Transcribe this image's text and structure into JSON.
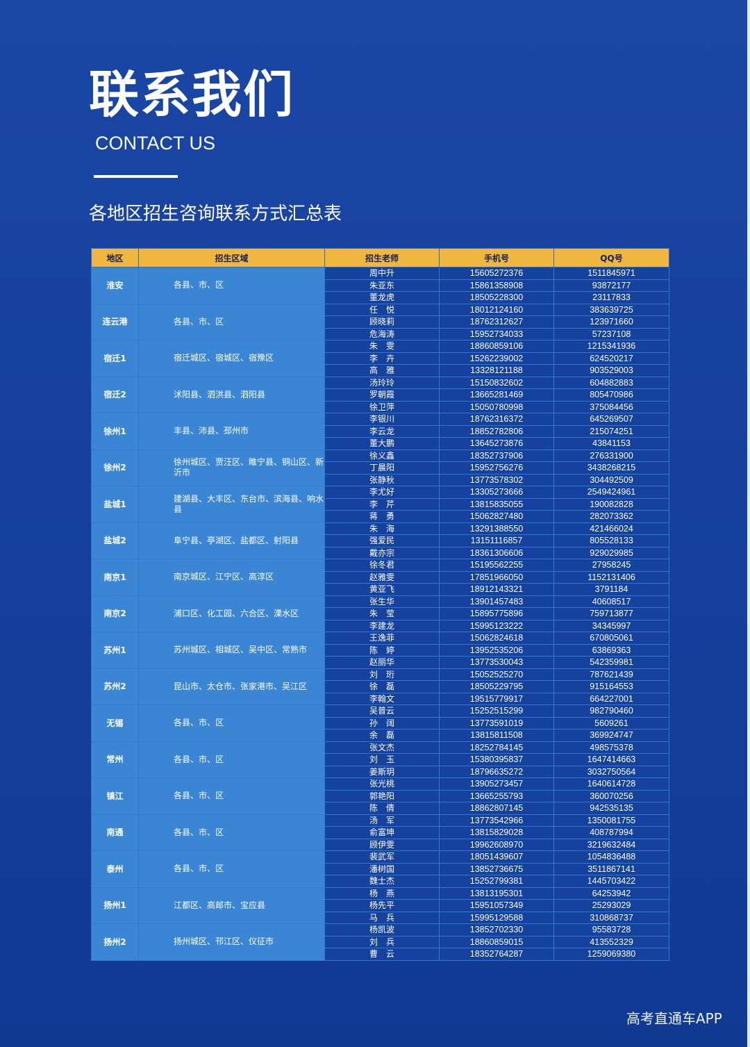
{
  "header": {
    "title": "联系我们",
    "subtitle": "CONTACT US",
    "table_heading": "各地区招生咨询联系方式汇总表"
  },
  "table": {
    "columns": [
      "地区",
      "招生区域",
      "招生老师",
      "手机号",
      "QQ号"
    ],
    "groups": [
      {
        "region": "淮安",
        "area": "各县、市、区",
        "contacts": [
          {
            "teacher": "周中升",
            "phone": "15605272376",
            "qq": "1511845971"
          },
          {
            "teacher": "朱亚东",
            "phone": "15861358908",
            "qq": "93872177"
          },
          {
            "teacher": "董龙虎",
            "phone": "18505228300",
            "qq": "23117833"
          }
        ]
      },
      {
        "region": "连云港",
        "area": "各县、市、区",
        "contacts": [
          {
            "teacher": "任　悦",
            "phone": "18012124160",
            "qq": "383639725"
          },
          {
            "teacher": "顾晓莉",
            "phone": "18762312627",
            "qq": "123971660"
          },
          {
            "teacher": "危海涛",
            "phone": "15952734033",
            "qq": "57237108"
          }
        ]
      },
      {
        "region": "宿迁1",
        "area": "宿迁城区、宿城区、宿豫区",
        "contacts": [
          {
            "teacher": "朱　雯",
            "phone": "18860859106",
            "qq": "1215341936"
          },
          {
            "teacher": "李　卉",
            "phone": "15262239002",
            "qq": "624520217"
          },
          {
            "teacher": "高　雅",
            "phone": "13328121188",
            "qq": "903529003"
          }
        ]
      },
      {
        "region": "宿迁2",
        "area": "沭阳县、泗洪县、泗阳县",
        "contacts": [
          {
            "teacher": "汤玲玲",
            "phone": "15150832602",
            "qq": "604882883"
          },
          {
            "teacher": "罗朝霞",
            "phone": "13665281469",
            "qq": "805470986"
          },
          {
            "teacher": "徐卫萍",
            "phone": "15050780998",
            "qq": "375084456"
          }
        ]
      },
      {
        "region": "徐州1",
        "area": "丰县、沛县、邳州市",
        "contacts": [
          {
            "teacher": "李银川",
            "phone": "18762316372",
            "qq": "645269507"
          },
          {
            "teacher": "李云龙",
            "phone": "18852782806",
            "qq": "215074251"
          },
          {
            "teacher": "董大鹏",
            "phone": "13645273876",
            "qq": "43841153"
          }
        ]
      },
      {
        "region": "徐州2",
        "area": "徐州城区、贾汪区、睢宁县、铜山区、新沂市",
        "contacts": [
          {
            "teacher": "徐义鑫",
            "phone": "18352737906",
            "qq": "276331900"
          },
          {
            "teacher": "丁晨阳",
            "phone": "15952756276",
            "qq": "3438268215"
          },
          {
            "teacher": "张静秋",
            "phone": "13773578302",
            "qq": "304492509"
          }
        ]
      },
      {
        "region": "盐城1",
        "area": "建湖县、大丰区、东台市、滨海县、响水县",
        "contacts": [
          {
            "teacher": "李尤好",
            "phone": "13305273666",
            "qq": "2549424961"
          },
          {
            "teacher": "李　芹",
            "phone": "13815835055",
            "qq": "190082828"
          },
          {
            "teacher": "蒋　勇",
            "phone": "15062827480",
            "qq": "282073362"
          }
        ]
      },
      {
        "region": "盐城2",
        "area": "阜宁县、亭湖区、盐都区、射阳县",
        "contacts": [
          {
            "teacher": "朱　海",
            "phone": "13291388550",
            "qq": "421466024"
          },
          {
            "teacher": "强爱民",
            "phone": "13151116857",
            "qq": "805528133"
          },
          {
            "teacher": "戴亦宗",
            "phone": "18361306606",
            "qq": "929029985"
          }
        ]
      },
      {
        "region": "南京1",
        "area": "南京城区、江宁区、高淳区",
        "contacts": [
          {
            "teacher": "徐冬君",
            "phone": "15195562255",
            "qq": "27958245"
          },
          {
            "teacher": "赵雅雯",
            "phone": "17851966050",
            "qq": "1152131406"
          },
          {
            "teacher": "黄亚飞",
            "phone": "18912143321",
            "qq": "3791184"
          }
        ]
      },
      {
        "region": "南京2",
        "area": "浦口区、化工园、六合区、溧水区",
        "contacts": [
          {
            "teacher": "张生华",
            "phone": "13901457483",
            "qq": "40608517"
          },
          {
            "teacher": "朱　莹",
            "phone": "15895775896",
            "qq": "759713877"
          },
          {
            "teacher": "李建龙",
            "phone": "15995123222",
            "qq": "34345997"
          }
        ]
      },
      {
        "region": "苏州1",
        "area": "苏州城区、相城区、吴中区、常熟市",
        "contacts": [
          {
            "teacher": "王逸菲",
            "phone": "15062824618",
            "qq": "670805061"
          },
          {
            "teacher": "陈　婷",
            "phone": "13952535206",
            "qq": "63869363"
          },
          {
            "teacher": "赵丽华",
            "phone": "13773530043",
            "qq": "542359981"
          }
        ]
      },
      {
        "region": "苏州2",
        "area": "昆山市、太仓市、张家港市、吴江区",
        "contacts": [
          {
            "teacher": "刘　珩",
            "phone": "15052525270",
            "qq": "787621439"
          },
          {
            "teacher": "徐　磊",
            "phone": "18505229795",
            "qq": "915164553"
          },
          {
            "teacher": "李翰文",
            "phone": "19515779917",
            "qq": "664227001"
          }
        ]
      },
      {
        "region": "无锡",
        "area": "各县、市、区",
        "contacts": [
          {
            "teacher": "吴普云",
            "phone": "15252515299",
            "qq": "982790460"
          },
          {
            "teacher": "孙　阔",
            "phone": "13773591019",
            "qq": "5609261"
          },
          {
            "teacher": "余　磊",
            "phone": "13815811508",
            "qq": "369924747"
          }
        ]
      },
      {
        "region": "常州",
        "area": "各县、市、区",
        "contacts": [
          {
            "teacher": "张文杰",
            "phone": "18252784145",
            "qq": "498575378"
          },
          {
            "teacher": "刘　玉",
            "phone": "15380395837",
            "qq": "1647414663"
          },
          {
            "teacher": "姜斯玥",
            "phone": "18796635272",
            "qq": "3032750564"
          }
        ]
      },
      {
        "region": "镇江",
        "area": "各县、市、区",
        "contacts": [
          {
            "teacher": "张光桃",
            "phone": "13905273457",
            "qq": "1640614728"
          },
          {
            "teacher": "郭艳阳",
            "phone": "13665255793",
            "qq": "360070256"
          },
          {
            "teacher": "陈　倩",
            "phone": "18862807145",
            "qq": "942535135"
          }
        ]
      },
      {
        "region": "南通",
        "area": "各县、市、区",
        "contacts": [
          {
            "teacher": "汤　军",
            "phone": "13773542966",
            "qq": "1350081755"
          },
          {
            "teacher": "俞富坤",
            "phone": "13815829028",
            "qq": "408787994"
          },
          {
            "teacher": "顾伊雯",
            "phone": "19962608970",
            "qq": "3219632484"
          }
        ]
      },
      {
        "region": "泰州",
        "area": "各县、市、区",
        "contacts": [
          {
            "teacher": "裴武军",
            "phone": "18051439607",
            "qq": "1054836488"
          },
          {
            "teacher": "潘树国",
            "phone": "13852736675",
            "qq": "3511867141"
          },
          {
            "teacher": "魏士杰",
            "phone": "15252799381",
            "qq": "1445703422"
          }
        ]
      },
      {
        "region": "扬州1",
        "area": "江都区、高邮市、宝应县",
        "contacts": [
          {
            "teacher": "杨　燕",
            "phone": "13813195301",
            "qq": "64253942"
          },
          {
            "teacher": "杨先平",
            "phone": "15951057349",
            "qq": "25293029"
          },
          {
            "teacher": "马　兵",
            "phone": "15995129588",
            "qq": "310868737"
          }
        ]
      },
      {
        "region": "扬州2",
        "area": "扬州城区、邗江区、仪征市",
        "contacts": [
          {
            "teacher": "杨凯波",
            "phone": "13852702330",
            "qq": "95583728"
          },
          {
            "teacher": "刘　兵",
            "phone": "18860859015",
            "qq": "413552329"
          },
          {
            "teacher": "曹　云",
            "phone": "18352764287",
            "qq": "1259069380"
          }
        ]
      }
    ]
  },
  "watermark": "高考直通车APP"
}
